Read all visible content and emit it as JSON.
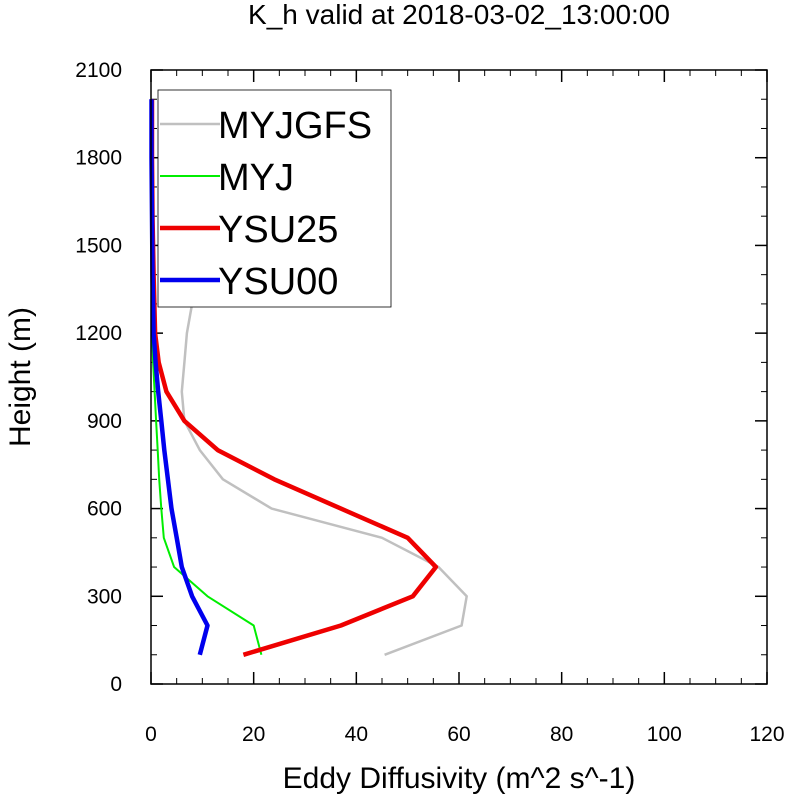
{
  "chart_data": {
    "type": "line",
    "title": "K_h valid at 2018-03-02_13:00:00",
    "xlabel": "Eddy Diffusivity (m^2 s^-1)",
    "ylabel": "Height (m)",
    "xlim": [
      0,
      120
    ],
    "ylim": [
      0,
      2100
    ],
    "xticks": [
      0,
      20,
      40,
      60,
      80,
      100,
      120
    ],
    "yticks": [
      0,
      300,
      600,
      900,
      1200,
      1500,
      1800,
      2100
    ],
    "xtick_labels": [
      "0",
      "20",
      "40",
      "60",
      "80",
      "100",
      "120"
    ],
    "ytick_labels": [
      "0",
      "300",
      "600",
      "900",
      "1200",
      "1500",
      "1800",
      "2100"
    ],
    "grid": false,
    "legend_position": "top-left",
    "series": [
      {
        "name": "MYJGFS",
        "color": "#c0c0c0",
        "width": 2.5,
        "points": [
          [
            45.5,
            100
          ],
          [
            60.5,
            200
          ],
          [
            61.5,
            300
          ],
          [
            56,
            400
          ],
          [
            45,
            500
          ],
          [
            23.5,
            600
          ],
          [
            14,
            700
          ],
          [
            9.5,
            800
          ],
          [
            6.5,
            900
          ],
          [
            6,
            1000
          ],
          [
            6.5,
            1100
          ],
          [
            7,
            1200
          ],
          [
            8,
            1300
          ],
          [
            9,
            1400
          ],
          [
            10.5,
            1500
          ],
          [
            11,
            1600
          ],
          [
            11.2,
            1700
          ],
          [
            11.2,
            1800
          ],
          [
            10.8,
            1900
          ],
          [
            10,
            2000
          ]
        ]
      },
      {
        "name": "MYJ",
        "color": "#00ee00",
        "width": 2,
        "points": [
          [
            21.5,
            100
          ],
          [
            20,
            200
          ],
          [
            11,
            300
          ],
          [
            4.5,
            400
          ],
          [
            2.5,
            500
          ],
          [
            2,
            600
          ],
          [
            1.6,
            700
          ],
          [
            1.3,
            800
          ],
          [
            1,
            900
          ],
          [
            0.7,
            1000
          ],
          [
            0.4,
            1100
          ],
          [
            0.2,
            1200
          ],
          [
            0.1,
            1400
          ],
          [
            0.1,
            1600
          ],
          [
            0.1,
            1800
          ],
          [
            0.1,
            2000
          ]
        ]
      },
      {
        "name": "YSU25",
        "color": "#ee0000",
        "width": 4.5,
        "points": [
          [
            18,
            100
          ],
          [
            37,
            200
          ],
          [
            51,
            300
          ],
          [
            55.5,
            400
          ],
          [
            50,
            500
          ],
          [
            37,
            600
          ],
          [
            24,
            700
          ],
          [
            13,
            800
          ],
          [
            6.5,
            900
          ],
          [
            3,
            1000
          ],
          [
            1.5,
            1100
          ],
          [
            0.8,
            1200
          ],
          [
            0.5,
            1400
          ],
          [
            0.3,
            1600
          ],
          [
            0.2,
            1800
          ],
          [
            0.2,
            2000
          ]
        ]
      },
      {
        "name": "YSU00",
        "color": "#0000ee",
        "width": 4.5,
        "points": [
          [
            9.5,
            100
          ],
          [
            11,
            200
          ],
          [
            8,
            300
          ],
          [
            6,
            400
          ],
          [
            5,
            500
          ],
          [
            4,
            600
          ],
          [
            3.3,
            700
          ],
          [
            2.6,
            800
          ],
          [
            2,
            900
          ],
          [
            1.4,
            1000
          ],
          [
            0.9,
            1100
          ],
          [
            0.5,
            1200
          ],
          [
            0.3,
            1400
          ],
          [
            0.2,
            1600
          ],
          [
            0.1,
            1800
          ],
          [
            0.1,
            2000
          ]
        ]
      }
    ]
  }
}
